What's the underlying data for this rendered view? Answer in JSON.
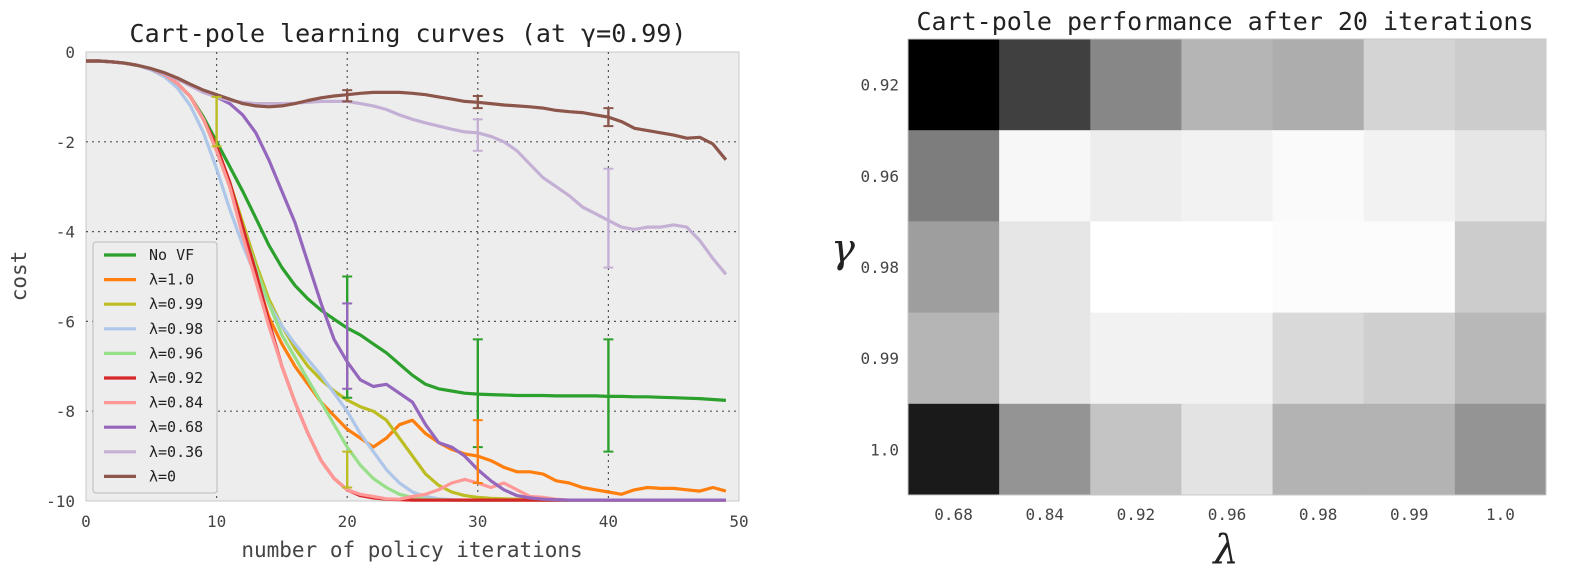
{
  "chart_data": [
    {
      "type": "line",
      "title": "Cart-pole learning curves (at γ=0.99)",
      "xlabel": "number of policy iterations",
      "ylabel": "cost",
      "xlim": [
        0,
        50
      ],
      "ylim": [
        -10,
        0
      ],
      "xticks": [
        "0",
        "10",
        "20",
        "30",
        "40",
        "50"
      ],
      "yticks": [
        "0",
        "-2",
        "-4",
        "-6",
        "-8",
        "-10"
      ],
      "grid": true,
      "legend_position": "lower-left",
      "x": [
        0,
        1,
        2,
        3,
        4,
        5,
        6,
        7,
        8,
        9,
        10,
        11,
        12,
        13,
        14,
        15,
        16,
        17,
        18,
        19,
        20,
        21,
        22,
        23,
        24,
        25,
        26,
        27,
        28,
        29,
        30,
        31,
        32,
        33,
        34,
        35,
        36,
        37,
        38,
        39,
        40,
        41,
        42,
        43,
        44,
        45,
        46,
        47,
        48,
        49
      ],
      "series": [
        {
          "name": "No VF",
          "color": "#2ca02c",
          "values": [
            -0.2,
            -0.2,
            -0.22,
            -0.25,
            -0.3,
            -0.38,
            -0.5,
            -0.7,
            -1.0,
            -1.45,
            -2.0,
            -2.55,
            -3.1,
            -3.7,
            -4.3,
            -4.8,
            -5.2,
            -5.5,
            -5.75,
            -5.95,
            -6.15,
            -6.3,
            -6.5,
            -6.7,
            -6.95,
            -7.2,
            -7.4,
            -7.5,
            -7.55,
            -7.6,
            -7.62,
            -7.63,
            -7.64,
            -7.65,
            -7.65,
            -7.65,
            -7.66,
            -7.66,
            -7.66,
            -7.66,
            -7.67,
            -7.67,
            -7.68,
            -7.68,
            -7.69,
            -7.7,
            -7.71,
            -7.72,
            -7.74,
            -7.76
          ]
        },
        {
          "name": "λ=1.0",
          "color": "#ff7f0e",
          "values": [
            -0.2,
            -0.2,
            -0.22,
            -0.25,
            -0.3,
            -0.38,
            -0.5,
            -0.7,
            -1.0,
            -1.5,
            -2.2,
            -3.0,
            -4.0,
            -5.0,
            -5.9,
            -6.5,
            -7.0,
            -7.4,
            -7.8,
            -8.1,
            -8.4,
            -8.6,
            -8.8,
            -8.6,
            -8.3,
            -8.2,
            -8.5,
            -8.7,
            -8.85,
            -8.95,
            -9.0,
            -9.1,
            -9.25,
            -9.35,
            -9.35,
            -9.4,
            -9.55,
            -9.6,
            -9.7,
            -9.75,
            -9.8,
            -9.85,
            -9.75,
            -9.7,
            -9.72,
            -9.72,
            -9.75,
            -9.78,
            -9.7,
            -9.78
          ]
        },
        {
          "name": "λ=0.99",
          "color": "#bcbd22",
          "values": [
            -0.2,
            -0.2,
            -0.22,
            -0.25,
            -0.3,
            -0.38,
            -0.5,
            -0.7,
            -1.0,
            -1.5,
            -2.1,
            -2.9,
            -3.8,
            -4.7,
            -5.5,
            -6.1,
            -6.6,
            -7.0,
            -7.3,
            -7.55,
            -7.75,
            -7.9,
            -8.0,
            -8.2,
            -8.6,
            -9.0,
            -9.4,
            -9.65,
            -9.8,
            -9.88,
            -9.92,
            -9.94,
            -9.95,
            -9.96,
            -9.97,
            -9.97,
            -9.98,
            -9.98,
            -9.98,
            -9.98,
            -9.98,
            -9.98,
            -9.98,
            -9.98,
            -9.98,
            -9.98,
            -9.98,
            -9.98,
            -9.98,
            -9.98
          ]
        },
        {
          "name": "λ=0.98",
          "color": "#aec7e8",
          "values": [
            -0.2,
            -0.2,
            -0.22,
            -0.25,
            -0.3,
            -0.4,
            -0.55,
            -0.8,
            -1.2,
            -1.8,
            -2.6,
            -3.5,
            -4.3,
            -5.0,
            -5.6,
            -6.1,
            -6.5,
            -6.85,
            -7.2,
            -7.6,
            -8.0,
            -8.5,
            -8.9,
            -9.3,
            -9.6,
            -9.8,
            -9.9,
            -9.95,
            -9.97,
            -9.98,
            -9.98,
            -9.98,
            -9.98,
            -9.98,
            -9.98,
            -9.98,
            -9.98,
            -9.98,
            -9.98,
            -9.98,
            -9.98,
            -9.98,
            -9.98,
            -9.98,
            -9.98,
            -9.98,
            -9.98,
            -9.98,
            -9.98,
            -9.98
          ]
        },
        {
          "name": "λ=0.96",
          "color": "#98df8a",
          "values": [
            -0.2,
            -0.2,
            -0.22,
            -0.25,
            -0.3,
            -0.38,
            -0.5,
            -0.7,
            -1.0,
            -1.5,
            -2.2,
            -3.0,
            -3.9,
            -4.8,
            -5.6,
            -6.3,
            -6.8,
            -7.3,
            -7.8,
            -8.3,
            -8.8,
            -9.2,
            -9.5,
            -9.7,
            -9.85,
            -9.92,
            -9.96,
            -9.97,
            -9.98,
            -9.98,
            -9.98,
            -9.98,
            -9.98,
            -9.98,
            -9.98,
            -9.98,
            -9.98,
            -9.98,
            -9.98,
            -9.98,
            -9.98,
            -9.98,
            -9.98,
            -9.98,
            -9.98,
            -9.98,
            -9.98,
            -9.98,
            -9.98,
            -9.98
          ]
        },
        {
          "name": "λ=0.92",
          "color": "#d62728",
          "values": [
            -0.2,
            -0.2,
            -0.22,
            -0.25,
            -0.3,
            -0.38,
            -0.5,
            -0.7,
            -1.0,
            -1.5,
            -2.1,
            -2.9,
            -3.9,
            -4.9,
            -6.0,
            -7.0,
            -7.8,
            -8.5,
            -9.1,
            -9.5,
            -9.75,
            -9.88,
            -9.93,
            -9.96,
            -9.97,
            -9.98,
            -9.98,
            -9.98,
            -9.98,
            -9.98,
            -9.98,
            -9.98,
            -9.98,
            -9.98,
            -9.98,
            -9.98,
            -9.98,
            -9.98,
            -9.98,
            -9.98,
            -9.98,
            -9.98,
            -9.98,
            -9.98,
            -9.98,
            -9.98,
            -9.98,
            -9.98,
            -9.98,
            -9.98
          ]
        },
        {
          "name": "λ=0.84",
          "color": "#ff9896",
          "values": [
            -0.2,
            -0.2,
            -0.22,
            -0.25,
            -0.3,
            -0.38,
            -0.5,
            -0.7,
            -1.0,
            -1.5,
            -2.2,
            -3.0,
            -4.1,
            -5.1,
            -6.1,
            -7.0,
            -7.8,
            -8.5,
            -9.1,
            -9.5,
            -9.75,
            -9.85,
            -9.9,
            -9.95,
            -9.96,
            -9.9,
            -9.85,
            -9.75,
            -9.6,
            -9.52,
            -9.6,
            -9.7,
            -9.6,
            -9.75,
            -9.9,
            -9.92,
            -9.96,
            -9.98,
            -9.98,
            -9.98,
            -9.98,
            -9.98,
            -9.98,
            -9.98,
            -9.98,
            -9.98,
            -9.98,
            -9.98,
            -9.98,
            -9.98
          ]
        },
        {
          "name": "λ=0.68",
          "color": "#9467bd",
          "values": [
            -0.2,
            -0.2,
            -0.22,
            -0.25,
            -0.3,
            -0.38,
            -0.48,
            -0.6,
            -0.75,
            -0.9,
            -1.0,
            -1.15,
            -1.4,
            -1.8,
            -2.4,
            -3.1,
            -3.8,
            -4.7,
            -5.6,
            -6.4,
            -6.9,
            -7.3,
            -7.45,
            -7.4,
            -7.6,
            -7.8,
            -8.3,
            -8.7,
            -8.8,
            -9.0,
            -9.3,
            -9.55,
            -9.75,
            -9.88,
            -9.93,
            -9.96,
            -9.97,
            -9.98,
            -9.98,
            -9.98,
            -9.98,
            -9.98,
            -9.98,
            -9.98,
            -9.98,
            -9.98,
            -9.98,
            -9.98,
            -9.98,
            -9.98
          ]
        },
        {
          "name": "λ=0.36",
          "color": "#c5b0d5",
          "values": [
            -0.2,
            -0.2,
            -0.22,
            -0.25,
            -0.3,
            -0.38,
            -0.48,
            -0.6,
            -0.75,
            -0.9,
            -1.0,
            -1.08,
            -1.12,
            -1.15,
            -1.15,
            -1.15,
            -1.14,
            -1.12,
            -1.1,
            -1.1,
            -1.1,
            -1.15,
            -1.2,
            -1.28,
            -1.4,
            -1.5,
            -1.58,
            -1.65,
            -1.72,
            -1.78,
            -1.8,
            -1.88,
            -2.0,
            -2.2,
            -2.5,
            -2.8,
            -3.0,
            -3.2,
            -3.45,
            -3.6,
            -3.75,
            -3.9,
            -3.95,
            -3.9,
            -3.9,
            -3.85,
            -3.9,
            -4.2,
            -4.6,
            -4.95
          ]
        },
        {
          "name": "λ=0",
          "color": "#8c564b",
          "values": [
            -0.2,
            -0.2,
            -0.22,
            -0.25,
            -0.3,
            -0.37,
            -0.46,
            -0.58,
            -0.72,
            -0.85,
            -0.95,
            -1.05,
            -1.15,
            -1.2,
            -1.22,
            -1.2,
            -1.15,
            -1.08,
            -1.02,
            -0.98,
            -0.95,
            -0.92,
            -0.9,
            -0.9,
            -0.9,
            -0.92,
            -0.95,
            -1.0,
            -1.05,
            -1.1,
            -1.12,
            -1.15,
            -1.18,
            -1.2,
            -1.22,
            -1.25,
            -1.3,
            -1.33,
            -1.35,
            -1.4,
            -1.45,
            -1.55,
            -1.7,
            -1.75,
            -1.8,
            -1.85,
            -1.92,
            -1.9,
            -2.05,
            -2.4
          ]
        }
      ],
      "error_bars": [
        {
          "series": "No VF",
          "x": 20,
          "low": -7.7,
          "high": -5.0
        },
        {
          "series": "No VF",
          "x": 30,
          "low": -8.8,
          "high": -6.4
        },
        {
          "series": "No VF",
          "x": 40,
          "low": -8.9,
          "high": -6.4
        },
        {
          "series": "λ=0.68",
          "x": 20,
          "low": -7.5,
          "high": -5.6
        },
        {
          "series": "λ=0.36",
          "x": 30,
          "low": -2.2,
          "high": -1.5
        },
        {
          "series": "λ=0.36",
          "x": 40,
          "low": -4.8,
          "high": -2.6
        },
        {
          "series": "λ=0",
          "x": 20,
          "low": -1.1,
          "high": -0.85
        },
        {
          "series": "λ=0",
          "x": 30,
          "low": -1.25,
          "high": -0.98
        },
        {
          "series": "λ=0",
          "x": 40,
          "low": -1.65,
          "high": -1.25
        },
        {
          "series": "λ=0.99",
          "x": 10,
          "low": -2.1,
          "high": -1.0
        },
        {
          "series": "λ=0.99",
          "x": 20,
          "low": -9.7,
          "high": -8.9
        },
        {
          "series": "λ=1.0",
          "x": 30,
          "low": -9.6,
          "high": -8.2
        }
      ]
    },
    {
      "type": "heatmap",
      "title": "Cart-pole performance after 20 iterations",
      "xlabel": "λ",
      "ylabel": "γ",
      "x_categories": [
        "0.68",
        "0.84",
        "0.92",
        "0.96",
        "0.98",
        "0.99",
        "1.0"
      ],
      "y_categories": [
        "0.92",
        "0.96",
        "0.98",
        "0.99",
        "1.0"
      ],
      "colormap": "gray",
      "values": [
        [
          0.0,
          0.25,
          0.53,
          0.71,
          0.68,
          0.83,
          0.8
        ],
        [
          0.49,
          0.97,
          0.93,
          0.95,
          0.98,
          0.95,
          0.9
        ],
        [
          0.62,
          0.9,
          1.0,
          1.0,
          0.99,
          0.99,
          0.8
        ],
        [
          0.71,
          0.9,
          0.95,
          0.95,
          0.85,
          0.81,
          0.72
        ],
        [
          0.1,
          0.58,
          0.77,
          0.89,
          0.7,
          0.7,
          0.58
        ]
      ]
    }
  ]
}
